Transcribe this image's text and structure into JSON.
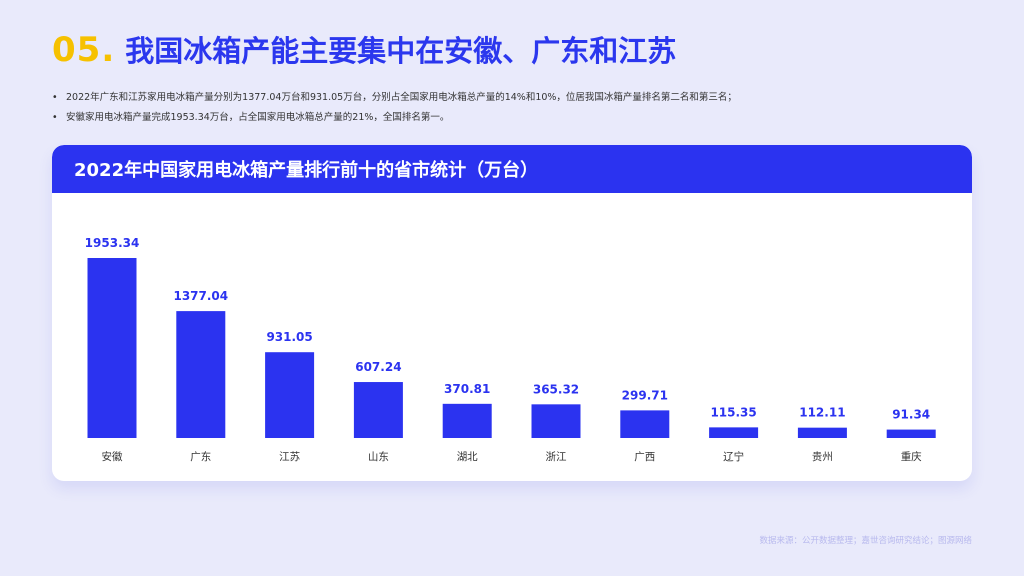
{
  "heading": {
    "number": "05.",
    "title": "我国冰箱产能主要集中在安徽、广东和江苏"
  },
  "bullets": [
    "2022年广东和江苏家用电冰箱产量分别为1377.04万台和931.05万台，分别占全国家用电冰箱总产量的14%和10%，位居我国冰箱产量排名第二名和第三名；",
    "安徽家用电冰箱产量完成1953.34万台，占全国家用电冰箱总产量的21%，全国排名第一。"
  ],
  "card": {
    "title": "2022年中国家用电冰箱产量排行前十的省市统计（万台）"
  },
  "chart_data": {
    "type": "bar",
    "title": "2022年中国家用电冰箱产量排行前十的省市统计（万台）",
    "categories": [
      "安徽",
      "广东",
      "江苏",
      "山东",
      "湖北",
      "浙江",
      "广西",
      "辽宁",
      "贵州",
      "重庆"
    ],
    "values": [
      1953.34,
      1377.04,
      931.05,
      607.24,
      370.81,
      365.32,
      299.71,
      115.35,
      112.11,
      91.34
    ],
    "value_labels": [
      "1953.34",
      "1377.04",
      "931.05",
      "607.24",
      "370.81",
      "365.32",
      "299.71",
      "115.35",
      "112.11",
      "91.34"
    ],
    "ylim": [
      0,
      1953.34
    ],
    "grid": false,
    "bar_color": "#2b33f0",
    "label_color": "#2b33f0"
  },
  "colors": {
    "accent": "#2b37ee",
    "number": "#f6c100",
    "background": "#e9eafb"
  },
  "footer": {
    "source": "数据来源：公开数据整理；嘉世咨询研究结论；图源网络"
  }
}
